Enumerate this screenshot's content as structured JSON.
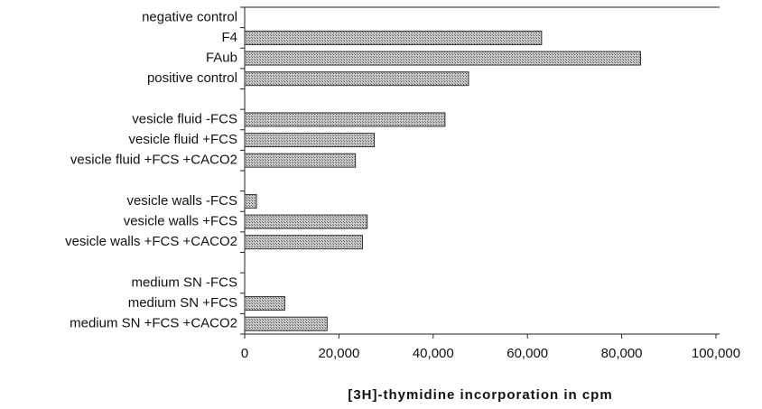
{
  "chart_data": {
    "type": "hbar",
    "xlabel": "[3H]-thymidine incorporation in cpm",
    "categories": [
      "negative control",
      "F4",
      "FAub",
      "positive control",
      null,
      "vesicle fluid -FCS",
      "vesicle fluid +FCS",
      "vesicle fluid +FCS +CACO2",
      null,
      "vesicle walls -FCS",
      "vesicle walls +FCS",
      "vesicle walls +FCS +CACO2",
      null,
      "medium SN -FCS",
      "medium SN +FCS",
      "medium SN +FCS +CACO2"
    ],
    "values": [
      0,
      63000,
      84000,
      47500,
      null,
      42500,
      27500,
      23500,
      null,
      2500,
      26000,
      25000,
      null,
      0,
      8500,
      17500
    ],
    "color": "#a8a8a8",
    "xlim": [
      0,
      100000
    ],
    "xticks": [
      0,
      {
        "value": 20000,
        "label": "20,000"
      },
      {
        "value": 40000,
        "label": "40,000"
      },
      {
        "value": 60000,
        "label": "60,000"
      },
      {
        "value": 80000,
        "label": "80,000"
      },
      {
        "value": 100000,
        "label": "100,000"
      }
    ]
  }
}
